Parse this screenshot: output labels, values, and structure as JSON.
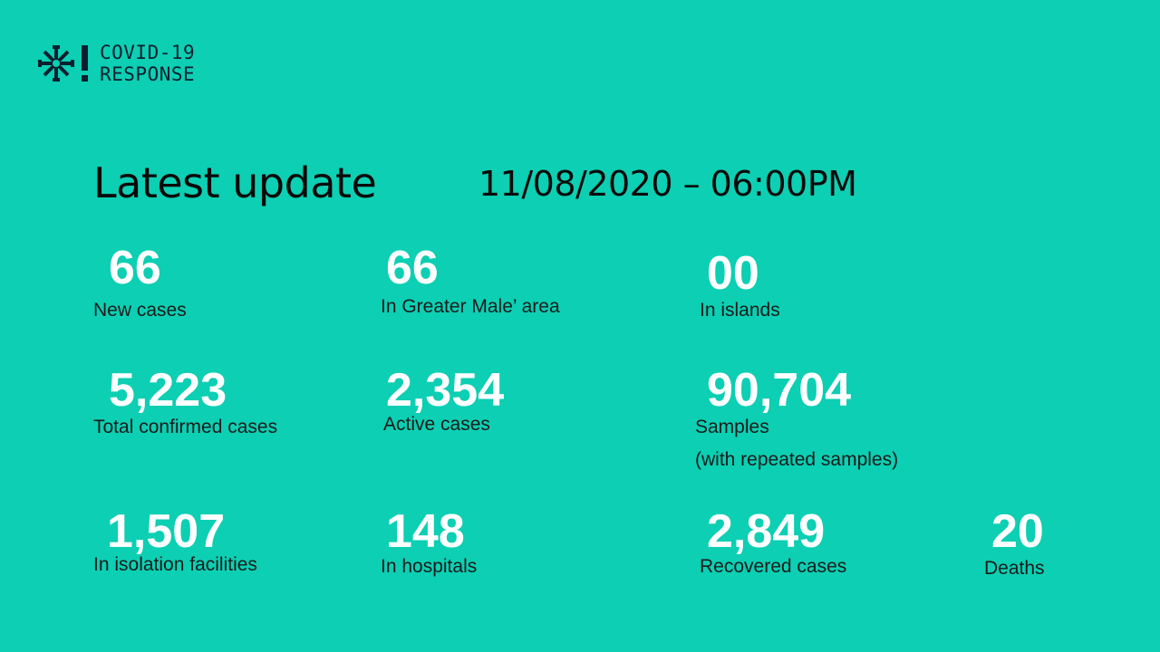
{
  "theme": {
    "background": "#0ccfb3",
    "value_color": "#ffffff",
    "label_color": "#1a1a1a",
    "logo_color": "#0b1f2e"
  },
  "logo": {
    "icon": "asterisk-exclamation-icon",
    "line1": "COVID-19",
    "line2": "RESPONSE"
  },
  "header": {
    "title": "Latest update",
    "datetime": "11/08/2020 – 06:00PM"
  },
  "stats": {
    "new_cases": {
      "value": "66",
      "label": "New cases"
    },
    "greater_male": {
      "value": "66",
      "label": "In Greater Male’ area"
    },
    "islands": {
      "value": "00",
      "label": "In islands"
    },
    "total_confirmed": {
      "value": "5,223",
      "label": "Total confirmed cases"
    },
    "active": {
      "value": "2,354",
      "label": "Active cases"
    },
    "samples": {
      "value": "90,704",
      "label": "Samples",
      "note": "(with repeated samples)"
    },
    "isolation": {
      "value": "1,507",
      "label": "In isolation facilities"
    },
    "hospitals": {
      "value": "148",
      "label": "In hospitals"
    },
    "recovered": {
      "value": "2,849",
      "label": "Recovered cases"
    },
    "deaths": {
      "value": "20",
      "label": "Deaths"
    }
  }
}
